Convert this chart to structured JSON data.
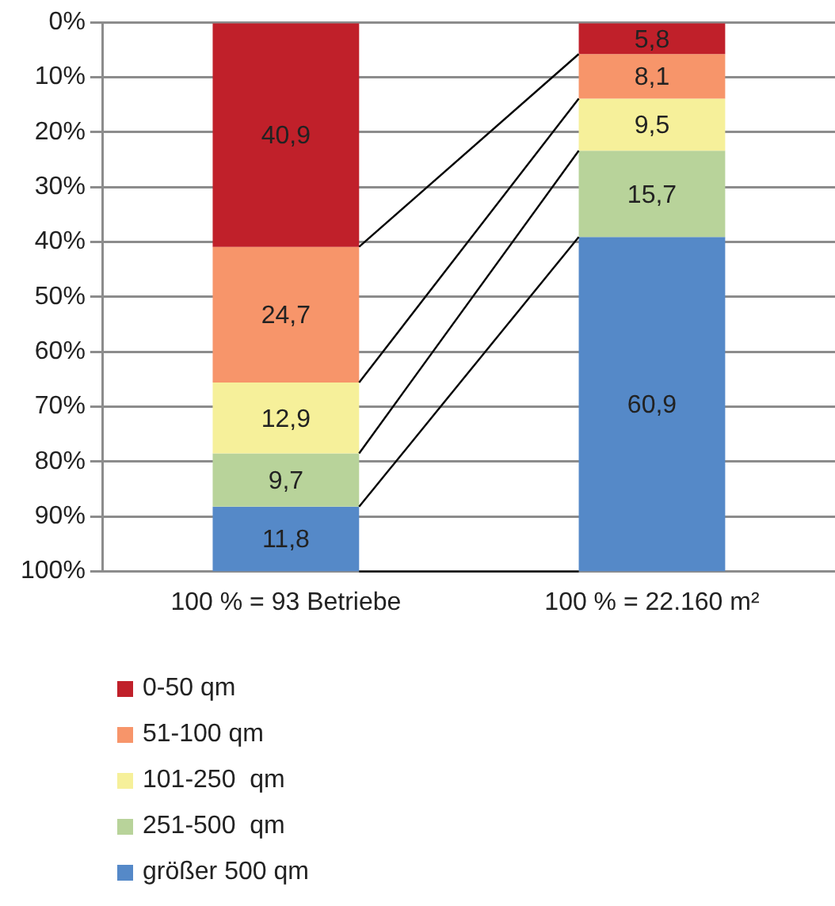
{
  "chart_data": {
    "type": "bar",
    "stacked": true,
    "categories": [
      "100 % = 93 Betriebe",
      "100 % = 22.160 m²"
    ],
    "series": [
      {
        "name": "0-50 qm",
        "color": "#c0202a",
        "values": [
          40.9,
          5.8
        ],
        "value_labels": [
          "40,9",
          "5,8"
        ]
      },
      {
        "name": "51-100 qm",
        "color": "#f7956a",
        "values": [
          24.7,
          8.1
        ],
        "value_labels": [
          "24,7",
          "8,1"
        ]
      },
      {
        "name": "101-250  qm",
        "color": "#f6f09a",
        "values": [
          12.9,
          9.5
        ],
        "value_labels": [
          "12,9",
          "9,5"
        ]
      },
      {
        "name": "251-500  qm",
        "color": "#b8d39a",
        "values": [
          9.7,
          15.7
        ],
        "value_labels": [
          "9,7",
          "15,7"
        ]
      },
      {
        "name": "größer 500 qm",
        "color": "#5589c8",
        "values": [
          11.8,
          60.9
        ],
        "value_labels": [
          "11,8",
          "60,9"
        ]
      }
    ],
    "ylim": [
      100,
      0
    ],
    "yticks": [
      {
        "value": 0,
        "label": "0%"
      },
      {
        "value": 10,
        "label": "10%"
      },
      {
        "value": 20,
        "label": "20%"
      },
      {
        "value": 30,
        "label": "30%"
      },
      {
        "value": 40,
        "label": "40%"
      },
      {
        "value": 50,
        "label": "50%"
      },
      {
        "value": 60,
        "label": "60%"
      },
      {
        "value": 70,
        "label": "70%"
      },
      {
        "value": 80,
        "label": "80%"
      },
      {
        "value": 90,
        "label": "90%"
      },
      {
        "value": 100,
        "label": "100%"
      }
    ],
    "grid": "y",
    "legend": "bottom left"
  }
}
